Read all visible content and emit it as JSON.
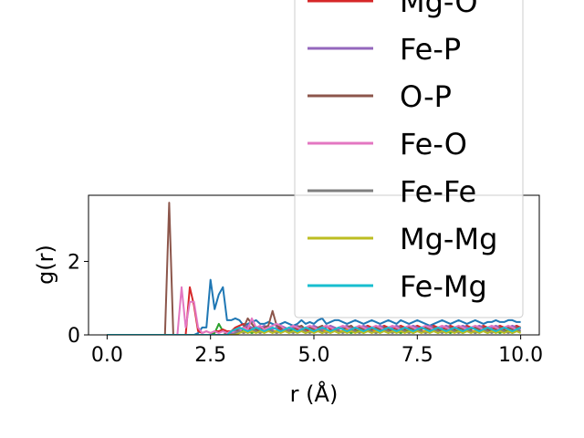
{
  "chart_data": {
    "type": "line",
    "xlabel": "r (Å)",
    "ylabel": "g(r)",
    "xlim": [
      -0.45,
      10.45
    ],
    "ylim": [
      0,
      3.8
    ],
    "xticks": [
      0.0,
      2.5,
      5.0,
      7.5,
      10.0
    ],
    "xtick_labels": [
      "0.0",
      "2.5",
      "5.0",
      "7.5",
      "10.0"
    ],
    "yticks": [
      0,
      2
    ],
    "ytick_labels": [
      "0",
      "2"
    ],
    "grid": false,
    "legend_placement": "upper right (overflowing above plot)",
    "x": [
      0.0,
      0.1,
      0.2,
      0.3,
      0.4,
      0.5,
      0.6,
      0.7,
      0.8,
      0.9,
      1.0,
      1.1,
      1.2,
      1.3,
      1.4,
      1.5,
      1.6,
      1.7,
      1.8,
      1.9,
      2.0,
      2.1,
      2.2,
      2.3,
      2.4,
      2.5,
      2.6,
      2.7,
      2.8,
      2.9,
      3.0,
      3.1,
      3.2,
      3.3,
      3.4,
      3.5,
      3.6,
      3.7,
      3.8,
      3.9,
      4.0,
      4.1,
      4.2,
      4.3,
      4.4,
      4.5,
      4.6,
      4.7,
      4.8,
      4.9,
      5.0,
      5.1,
      5.2,
      5.3,
      5.4,
      5.5,
      5.6,
      5.7,
      5.8,
      5.9,
      6.0,
      6.1,
      6.2,
      6.3,
      6.4,
      6.5,
      6.6,
      6.7,
      6.8,
      6.9,
      7.0,
      7.1,
      7.2,
      7.3,
      7.4,
      7.5,
      7.6,
      7.7,
      7.8,
      7.9,
      8.0,
      8.1,
      8.2,
      8.3,
      8.4,
      8.5,
      8.6,
      8.7,
      8.8,
      8.9,
      9.0,
      9.1,
      9.2,
      9.3,
      9.4,
      9.5,
      9.6,
      9.7,
      9.8,
      9.9,
      10.0
    ],
    "series": [
      {
        "color": "#1f77b4",
        "values": [
          0,
          0,
          0,
          0,
          0,
          0,
          0,
          0,
          0,
          0,
          0,
          0,
          0,
          0,
          0,
          0,
          0,
          0,
          0,
          0,
          0,
          0,
          0.05,
          0.2,
          0.2,
          1.5,
          0.7,
          1.1,
          1.3,
          0.4,
          0.4,
          0.45,
          0.4,
          0.25,
          0.3,
          0.35,
          0.4,
          0.3,
          0.3,
          0.35,
          0.3,
          0.25,
          0.3,
          0.35,
          0.3,
          0.25,
          0.3,
          0.4,
          0.3,
          0.35,
          0.3,
          0.4,
          0.45,
          0.3,
          0.35,
          0.4,
          0.4,
          0.35,
          0.3,
          0.35,
          0.4,
          0.35,
          0.3,
          0.35,
          0.4,
          0.35,
          0.3,
          0.35,
          0.4,
          0.35,
          0.3,
          0.4,
          0.35,
          0.3,
          0.35,
          0.4,
          0.35,
          0.3,
          0.25,
          0.3,
          0.35,
          0.4,
          0.35,
          0.3,
          0.35,
          0.4,
          0.35,
          0.3,
          0.35,
          0.4,
          0.35,
          0.3,
          0.35,
          0.35,
          0.4,
          0.35,
          0.35,
          0.4,
          0.4,
          0.35,
          0.35
        ]
      },
      {
        "color": "#ff7f0e",
        "values": [
          0,
          0,
          0,
          0,
          0,
          0,
          0,
          0,
          0,
          0,
          0,
          0,
          0,
          0,
          0,
          0,
          0,
          0,
          0,
          0,
          0,
          0,
          0,
          0,
          0,
          0,
          0,
          0,
          0,
          0,
          0.05,
          0.1,
          0.1,
          0.05,
          0.1,
          0.15,
          0.1,
          0.05,
          0.1,
          0.15,
          0.1,
          0.1,
          0.15,
          0.1,
          0.1,
          0.15,
          0.2,
          0.1,
          0.15,
          0.1,
          0.2,
          0.15,
          0.1,
          0.15,
          0.1,
          0.15,
          0.1,
          0.1,
          0.15,
          0.1,
          0.1,
          0.15,
          0.1,
          0.1,
          0.15,
          0.1,
          0.15,
          0.1,
          0.1,
          0.15,
          0.1,
          0.1,
          0.15,
          0.1,
          0.1,
          0.15,
          0.1,
          0.1,
          0.15,
          0.1,
          0.1,
          0.15,
          0.1,
          0.1,
          0.15,
          0.1,
          0.1,
          0.15,
          0.1,
          0.1,
          0.15,
          0.1,
          0.1,
          0.15,
          0.1,
          0.1,
          0.15,
          0.1,
          0.1,
          0.15,
          0.1
        ]
      },
      {
        "color": "#2ca02c",
        "values": [
          0,
          0,
          0,
          0,
          0,
          0,
          0,
          0,
          0,
          0,
          0,
          0,
          0,
          0,
          0,
          0,
          0,
          0,
          0,
          0,
          0,
          0,
          0,
          0,
          0,
          0,
          0.05,
          0.3,
          0.1,
          0.05,
          0.05,
          0.1,
          0.15,
          0.1,
          0.1,
          0.05,
          0.1,
          0.1,
          0.15,
          0.1,
          0.1,
          0.05,
          0.1,
          0.1,
          0.1,
          0.15,
          0.1,
          0.1,
          0.05,
          0.1,
          0.1,
          0.1,
          0.05,
          0.1,
          0.1,
          0.1,
          0.05,
          0.1,
          0.1,
          0.05,
          0.1,
          0.1,
          0.05,
          0.1,
          0.1,
          0.05,
          0.1,
          0.1,
          0.05,
          0.1,
          0.1,
          0.05,
          0.1,
          0.1,
          0.05,
          0.1,
          0.1,
          0.05,
          0.1,
          0.1,
          0.05,
          0.1,
          0.1,
          0.05,
          0.1,
          0.1,
          0.05,
          0.1,
          0.1,
          0.05,
          0.1,
          0.1,
          0.05,
          0.1,
          0.1,
          0.05,
          0.1,
          0.1,
          0.05,
          0.1,
          0.1
        ]
      },
      {
        "name": "Mg-O",
        "color": "#d62728",
        "values": [
          0,
          0,
          0,
          0,
          0,
          0,
          0,
          0,
          0,
          0,
          0,
          0,
          0,
          0,
          0,
          0,
          0,
          0,
          0,
          0,
          1.3,
          0.8,
          0.1,
          0.05,
          0.1,
          0.05,
          0.1,
          0.1,
          0.15,
          0.1,
          0.1,
          0.2,
          0.25,
          0.3,
          0.15,
          0.2,
          0.15,
          0.2,
          0.15,
          0.1,
          0.15,
          0.2,
          0.15,
          0.1,
          0.15,
          0.2,
          0.15,
          0.2,
          0.15,
          0.1,
          0.2,
          0.15,
          0.2,
          0.25,
          0.15,
          0.2,
          0.15,
          0.2,
          0.25,
          0.15,
          0.2,
          0.15,
          0.2,
          0.25,
          0.2,
          0.15,
          0.2,
          0.25,
          0.2,
          0.15,
          0.2,
          0.25,
          0.2,
          0.15,
          0.2,
          0.25,
          0.2,
          0.15,
          0.2,
          0.25,
          0.2,
          0.15,
          0.2,
          0.25,
          0.2,
          0.15,
          0.2,
          0.25,
          0.2,
          0.15,
          0.2,
          0.25,
          0.2,
          0.15,
          0.2,
          0.25,
          0.2,
          0.15,
          0.2,
          0.25,
          0.2
        ]
      },
      {
        "name": "Fe-P",
        "color": "#9467bd",
        "values": [
          0,
          0,
          0,
          0,
          0,
          0,
          0,
          0,
          0,
          0,
          0,
          0,
          0,
          0,
          0,
          0,
          0,
          0,
          0,
          0,
          0,
          0,
          0,
          0,
          0,
          0,
          0,
          0,
          0,
          0,
          0.05,
          0.1,
          0.15,
          0.2,
          0.25,
          0.2,
          0.15,
          0.2,
          0.25,
          0.2,
          0.15,
          0.2,
          0.25,
          0.2,
          0.15,
          0.2,
          0.25,
          0.2,
          0.15,
          0.2,
          0.25,
          0.2,
          0.15,
          0.2,
          0.25,
          0.2,
          0.15,
          0.2,
          0.25,
          0.2,
          0.15,
          0.2,
          0.25,
          0.2,
          0.15,
          0.2,
          0.25,
          0.2,
          0.15,
          0.2,
          0.25,
          0.2,
          0.15,
          0.2,
          0.25,
          0.2,
          0.15,
          0.2,
          0.25,
          0.2,
          0.15,
          0.2,
          0.25,
          0.2,
          0.15,
          0.2,
          0.25,
          0.2,
          0.15,
          0.2,
          0.25,
          0.2,
          0.15,
          0.2,
          0.25,
          0.2,
          0.15,
          0.2,
          0.25,
          0.2,
          0.15
        ]
      },
      {
        "name": "O-P",
        "color": "#8c564b",
        "values": [
          0,
          0,
          0,
          0,
          0,
          0,
          0,
          0,
          0,
          0,
          0,
          0,
          0,
          0,
          0,
          3.6,
          0,
          0,
          0,
          0,
          0,
          0,
          0,
          0,
          0,
          0,
          0,
          0,
          0,
          0.05,
          0.1,
          0.15,
          0.1,
          0.2,
          0.45,
          0.3,
          0.15,
          0.1,
          0.2,
          0.25,
          0.65,
          0.25,
          0.2,
          0.15,
          0.2,
          0.15,
          0.2,
          0.25,
          0.15,
          0.2,
          0.15,
          0.2,
          0.25,
          0.15,
          0.1,
          0.15,
          0.2,
          0.15,
          0.2,
          0.25,
          0.15,
          0.2,
          0.15,
          0.1,
          0.15,
          0.2,
          0.15,
          0.2,
          0.15,
          0.1,
          0.15,
          0.2,
          0.15,
          0.2,
          0.15,
          0.1,
          0.15,
          0.2,
          0.15,
          0.2,
          0.15,
          0.1,
          0.15,
          0.2,
          0.15,
          0.2,
          0.15,
          0.1,
          0.15,
          0.2,
          0.15,
          0.2,
          0.15,
          0.1,
          0.15,
          0.2,
          0.15,
          0.2,
          0.15,
          0.2,
          0.2
        ]
      },
      {
        "name": "Fe-O",
        "color": "#e377c2",
        "values": [
          0,
          0,
          0,
          0,
          0,
          0,
          0,
          0,
          0,
          0,
          0,
          0,
          0,
          0,
          0,
          0,
          0,
          0,
          1.3,
          0.2,
          0.9,
          0.9,
          0.2,
          0.05,
          0.1,
          0.05,
          0.1,
          0.05,
          0.1,
          0.05,
          0.1,
          0.05,
          0.1,
          0.2,
          0.15,
          0.45,
          0.2,
          0.25,
          0.15,
          0.2,
          0.25,
          0.3,
          0.25,
          0.15,
          0.2,
          0.25,
          0.2,
          0.15,
          0.2,
          0.25,
          0.2,
          0.15,
          0.2,
          0.25,
          0.2,
          0.15,
          0.2,
          0.25,
          0.2,
          0.15,
          0.2,
          0.25,
          0.2,
          0.15,
          0.2,
          0.25,
          0.2,
          0.15,
          0.2,
          0.25,
          0.2,
          0.15,
          0.2,
          0.25,
          0.2,
          0.15,
          0.2,
          0.25,
          0.2,
          0.15,
          0.2,
          0.25,
          0.2,
          0.15,
          0.2,
          0.25,
          0.2,
          0.15,
          0.2,
          0.25,
          0.2,
          0.15,
          0.2,
          0.25,
          0.2,
          0.15,
          0.2,
          0.25,
          0.2,
          0.15,
          0.2
        ]
      },
      {
        "name": "Fe-Fe",
        "color": "#7f7f7f",
        "values": [
          0,
          0,
          0,
          0,
          0,
          0,
          0,
          0,
          0,
          0,
          0,
          0,
          0,
          0,
          0,
          0,
          0,
          0,
          0,
          0,
          0,
          0,
          0,
          0,
          0,
          0,
          0,
          0,
          0,
          0,
          0,
          0.05,
          0.1,
          0.05,
          0.1,
          0.15,
          0.1,
          0.05,
          0.1,
          0.15,
          0.1,
          0.05,
          0.1,
          0.15,
          0.1,
          0.05,
          0.1,
          0.15,
          0.1,
          0.05,
          0.1,
          0.15,
          0.1,
          0.05,
          0.1,
          0.15,
          0.1,
          0.05,
          0.1,
          0.15,
          0.1,
          0.05,
          0.1,
          0.15,
          0.1,
          0.05,
          0.1,
          0.15,
          0.1,
          0.05,
          0.1,
          0.15,
          0.1,
          0.05,
          0.1,
          0.15,
          0.1,
          0.05,
          0.1,
          0.15,
          0.1,
          0.05,
          0.1,
          0.15,
          0.1,
          0.05,
          0.1,
          0.15,
          0.1,
          0.05,
          0.1,
          0.15,
          0.1,
          0.05,
          0.1,
          0.15,
          0.1,
          0.05,
          0.1,
          0.15,
          0.1
        ]
      },
      {
        "name": "Mg-Mg",
        "color": "#bcbd22",
        "values": [
          0,
          0,
          0,
          0,
          0,
          0,
          0,
          0,
          0,
          0,
          0,
          0,
          0,
          0,
          0,
          0,
          0,
          0,
          0,
          0,
          0,
          0,
          0,
          0,
          0,
          0,
          0,
          0,
          0,
          0,
          0,
          0,
          0.05,
          0.1,
          0.05,
          0.1,
          0.05,
          0.1,
          0.05,
          0.1,
          0.05,
          0.1,
          0.05,
          0.1,
          0.05,
          0.1,
          0.05,
          0.1,
          0.05,
          0.1,
          0.05,
          0.1,
          0.05,
          0.1,
          0.05,
          0.1,
          0.05,
          0.1,
          0.05,
          0.1,
          0.05,
          0.1,
          0.05,
          0.1,
          0.05,
          0.1,
          0.05,
          0.1,
          0.05,
          0.1,
          0.05,
          0.1,
          0.05,
          0.1,
          0.05,
          0.1,
          0.05,
          0.1,
          0.05,
          0.1,
          0.05,
          0.1,
          0.05,
          0.1,
          0.05,
          0.1,
          0.05,
          0.1,
          0.05,
          0.1,
          0.05,
          0.1,
          0.05,
          0.1,
          0.05,
          0.1,
          0.05,
          0.1,
          0.05,
          0.1,
          0.05
        ]
      },
      {
        "name": "Fe-Mg",
        "color": "#17becf",
        "values": [
          0,
          0,
          0,
          0,
          0,
          0,
          0,
          0,
          0,
          0,
          0,
          0,
          0,
          0,
          0,
          0,
          0,
          0,
          0,
          0,
          0,
          0,
          0,
          0,
          0,
          0,
          0,
          0,
          0,
          0,
          0.1,
          0.15,
          0.2,
          0.15,
          0.1,
          0.15,
          0.2,
          0.15,
          0.1,
          0.15,
          0.2,
          0.15,
          0.1,
          0.15,
          0.2,
          0.15,
          0.1,
          0.15,
          0.2,
          0.15,
          0.1,
          0.15,
          0.2,
          0.15,
          0.1,
          0.15,
          0.2,
          0.15,
          0.1,
          0.15,
          0.2,
          0.15,
          0.1,
          0.15,
          0.2,
          0.15,
          0.1,
          0.15,
          0.2,
          0.15,
          0.1,
          0.15,
          0.2,
          0.15,
          0.1,
          0.15,
          0.2,
          0.15,
          0.1,
          0.15,
          0.2,
          0.15,
          0.1,
          0.15,
          0.2,
          0.15,
          0.1,
          0.15,
          0.2,
          0.15,
          0.1,
          0.15,
          0.2,
          0.15,
          0.1,
          0.15,
          0.2,
          0.15,
          0.1,
          0.15,
          0.2
        ]
      }
    ]
  }
}
